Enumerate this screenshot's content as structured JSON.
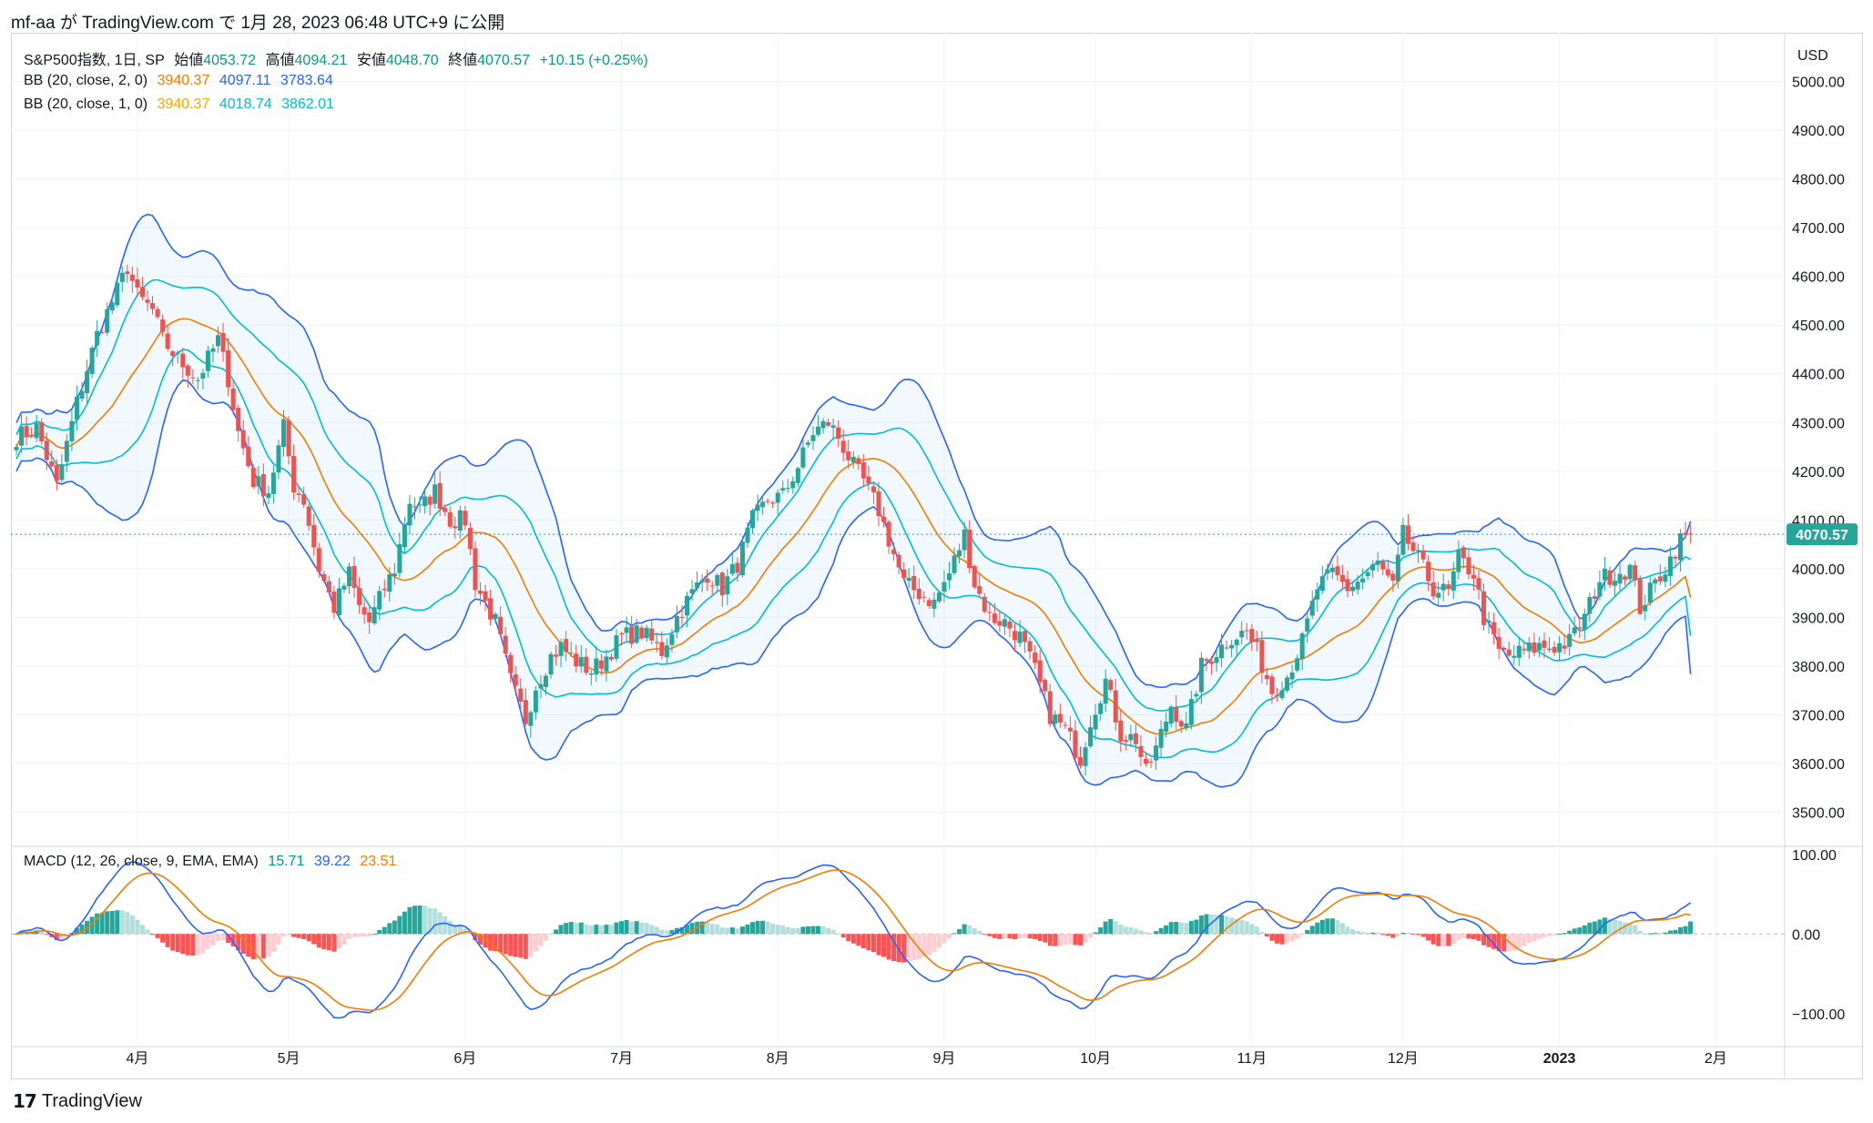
{
  "header": {
    "text": "mf-aa が TradingView.com で 1月 28, 2023 06:48 UTC+9 に公開"
  },
  "legend": {
    "symbol": "S&P500指数, 1日, SP",
    "open_label": "始値",
    "open": "4053.72",
    "high_label": "高値",
    "high": "4094.21",
    "low_label": "安値",
    "low": "4048.70",
    "close_label": "終値",
    "close": "4070.57",
    "change": "+10.15 (+0.25%)",
    "bb2_label": "BB (20, close, 2, 0)",
    "bb2_basis": "3940.37",
    "bb2_upper": "4097.11",
    "bb2_lower": "3783.64",
    "bb1_label": "BB (20, close, 1, 0)",
    "bb1_basis": "3940.37",
    "bb1_upper": "4018.74",
    "bb1_lower": "3862.01",
    "macd_label": "MACD (12, 26, close, 9, EMA, EMA)",
    "macd_hist": "15.71",
    "macd_line": "39.22",
    "macd_signal": "23.51"
  },
  "currency": "USD",
  "last_price_badge": "4070.57",
  "footer": {
    "brand": "TradingView",
    "logo": "tv-logo-icon"
  },
  "colors": {
    "up": "#26a69a",
    "down": "#ef5350",
    "bb_outer": "#2962ff",
    "bb_inner": "#00bcd4",
    "basis": "#f57c00",
    "macd": "#2962ff",
    "signal": "#f57c00",
    "hist_up_strong": "#26a69a",
    "hist_up_weak": "#b2dfdb",
    "hist_down_strong": "#ff5252",
    "hist_down_weak": "#ffcdd2"
  },
  "chart_data": [
    {
      "type": "candlestick",
      "title": "S&P500指数, 1日, SP",
      "y_ticks": [
        "3500.00",
        "3600.00",
        "3700.00",
        "3800.00",
        "3900.00",
        "4000.00",
        "4100.00",
        "4200.00",
        "4300.00",
        "4400.00",
        "4500.00",
        "4600.00",
        "4700.00",
        "4800.00",
        "4900.00",
        "5000.00"
      ],
      "ylim": [
        3430,
        5100
      ],
      "x_ticks": [
        "4月",
        "5月",
        "6月",
        "7月",
        "8月",
        "9月",
        "10月",
        "11月",
        "12月",
        "2023",
        "2月"
      ],
      "x_tick_days": [
        24,
        54,
        89,
        120,
        151,
        184,
        214,
        245,
        275,
        306,
        337
      ],
      "x_range_days": [
        0,
        350
      ],
      "close_anchors": [
        [
          0,
          4270
        ],
        [
          4,
          4290
        ],
        [
          8,
          4170
        ],
        [
          12,
          4340
        ],
        [
          16,
          4480
        ],
        [
          20,
          4570
        ],
        [
          22,
          4620
        ],
        [
          24,
          4560
        ],
        [
          27,
          4530
        ],
        [
          29,
          4470
        ],
        [
          32,
          4430
        ],
        [
          36,
          4390
        ],
        [
          40,
          4470
        ],
        [
          42,
          4390
        ],
        [
          44,
          4280
        ],
        [
          47,
          4180
        ],
        [
          50,
          4160
        ],
        [
          53,
          4290
        ],
        [
          55,
          4170
        ],
        [
          57,
          4140
        ],
        [
          60,
          4000
        ],
        [
          63,
          3920
        ],
        [
          66,
          3990
        ],
        [
          68,
          3920
        ],
        [
          70,
          3890
        ],
        [
          73,
          3960
        ],
        [
          75,
          4000
        ],
        [
          78,
          4140
        ],
        [
          80,
          4120
        ],
        [
          83,
          4160
        ],
        [
          86,
          4100
        ],
        [
          89,
          4100
        ],
        [
          91,
          3970
        ],
        [
          95,
          3890
        ],
        [
          98,
          3770
        ],
        [
          101,
          3690
        ],
        [
          103,
          3760
        ],
        [
          106,
          3820
        ],
        [
          108,
          3840
        ],
        [
          111,
          3810
        ],
        [
          114,
          3790
        ],
        [
          117,
          3820
        ],
        [
          120,
          3860
        ],
        [
          124,
          3870
        ],
        [
          128,
          3830
        ],
        [
          131,
          3900
        ],
        [
          134,
          3950
        ],
        [
          137,
          3990
        ],
        [
          140,
          3960
        ],
        [
          143,
          4010
        ],
        [
          146,
          4100
        ],
        [
          149,
          4140
        ],
        [
          152,
          4150
        ],
        [
          155,
          4210
        ],
        [
          158,
          4280
        ],
        [
          161,
          4300
        ],
        [
          163,
          4270
        ],
        [
          166,
          4210
        ],
        [
          168,
          4180
        ],
        [
          171,
          4120
        ],
        [
          173,
          4060
        ],
        [
          176,
          3970
        ],
        [
          179,
          3950
        ],
        [
          182,
          3930
        ],
        [
          185,
          3990
        ],
        [
          188,
          4070
        ],
        [
          190,
          3970
        ],
        [
          193,
          3900
        ],
        [
          196,
          3890
        ],
        [
          199,
          3860
        ],
        [
          202,
          3790
        ],
        [
          205,
          3700
        ],
        [
          208,
          3670
        ],
        [
          211,
          3610
        ],
        [
          213,
          3690
        ],
        [
          216,
          3770
        ],
        [
          219,
          3660
        ],
        [
          222,
          3650
        ],
        [
          224,
          3580
        ],
        [
          226,
          3630
        ],
        [
          229,
          3720
        ],
        [
          232,
          3670
        ],
        [
          235,
          3800
        ],
        [
          238,
          3830
        ],
        [
          241,
          3860
        ],
        [
          244,
          3870
        ],
        [
          246,
          3830
        ],
        [
          249,
          3750
        ],
        [
          252,
          3780
        ],
        [
          255,
          3850
        ],
        [
          258,
          3960
        ],
        [
          261,
          3990
        ],
        [
          264,
          3960
        ],
        [
          267,
          3980
        ],
        [
          270,
          4010
        ],
        [
          273,
          3960
        ],
        [
          275,
          4070
        ],
        [
          278,
          4020
        ],
        [
          281,
          3960
        ],
        [
          284,
          3950
        ],
        [
          286,
          4020
        ],
        [
          289,
          3990
        ],
        [
          291,
          3900
        ],
        [
          294,
          3830
        ],
        [
          296,
          3820
        ],
        [
          299,
          3830
        ],
        [
          302,
          3840
        ],
        [
          305,
          3840
        ],
        [
          308,
          3850
        ],
        [
          311,
          3900
        ],
        [
          314,
          3980
        ],
        [
          317,
          3990
        ],
        [
          320,
          4000
        ],
        [
          322,
          3920
        ],
        [
          325,
          3970
        ],
        [
          328,
          4020
        ],
        [
          330,
          4060
        ],
        [
          332,
          4071
        ]
      ],
      "last_close": 4070.57,
      "bb": {
        "length": 20,
        "mult_outer": 2,
        "mult_inner": 1,
        "last_upper2": 4097.11,
        "last_lower2": 3783.64,
        "last_basis": 3940.37
      }
    },
    {
      "type": "macd",
      "title": "MACD (12, 26, close, 9, EMA, EMA)",
      "y_ticks": [
        "100.00",
        "0.00",
        "−100.00"
      ],
      "ylim": [
        -130,
        110
      ],
      "last": {
        "hist": 15.71,
        "macd": 39.22,
        "signal": 23.51
      }
    }
  ]
}
